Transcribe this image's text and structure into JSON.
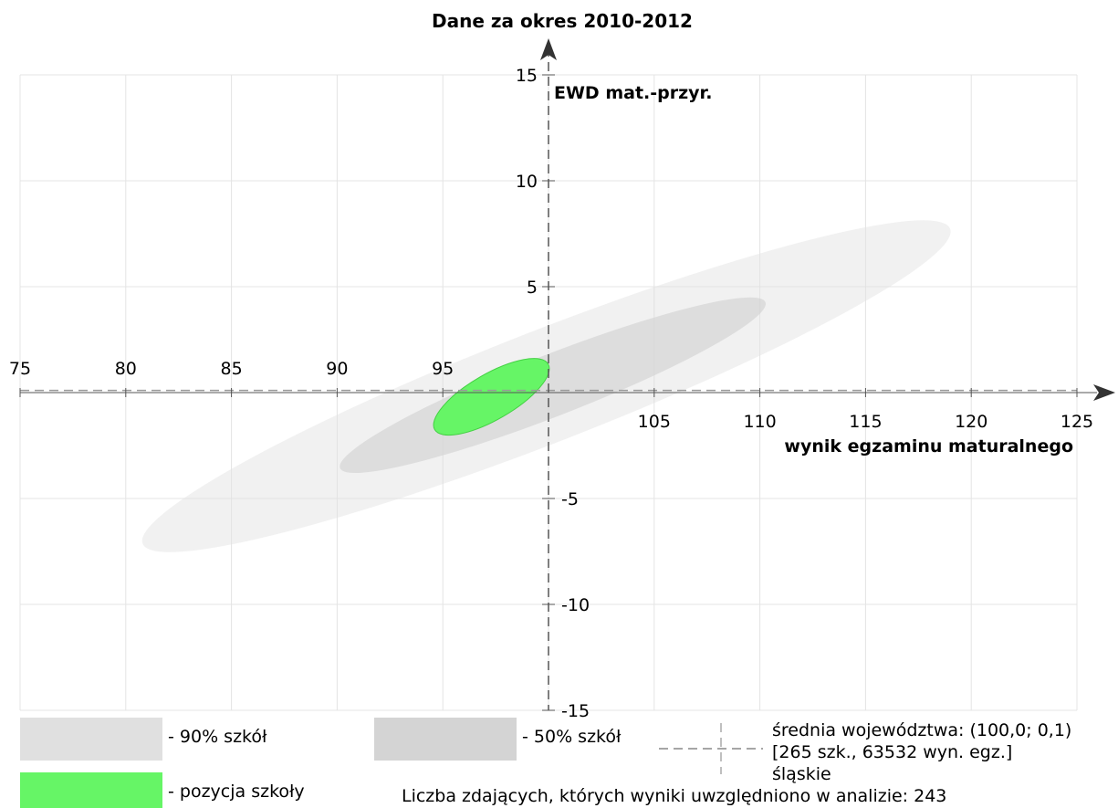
{
  "chart_data": {
    "type": "scatter",
    "title": "Dane za okres 2010-2012",
    "xlabel": "wynik egzaminu maturalnego",
    "ylabel": "EWD mat.-przyr.",
    "xlim": [
      75,
      125
    ],
    "ylim": [
      -15,
      15
    ],
    "x_ticks": [
      "75",
      "80",
      "85",
      "90",
      "95",
      "105",
      "110",
      "115",
      "120",
      "125"
    ],
    "y_ticks": [
      "15",
      "10",
      "5",
      "-5",
      "-10",
      "-15"
    ],
    "grid": true,
    "reference_point": {
      "x": 100.0,
      "y": 0.1
    },
    "regions": [
      {
        "name": "90% szkół",
        "color": "#e0e0e0",
        "center": [
          99.9,
          0.3
        ],
        "rx": 20.5,
        "ry": 2.65,
        "angle_deg": 21.3
      },
      {
        "name": "50% szkół",
        "color": "#d4d4d4",
        "center": [
          100.2,
          0.35
        ],
        "rx": 10.8,
        "ry": 1.45,
        "angle_deg": 21.3
      },
      {
        "name": "pozycja szkoły",
        "color": "#66f566",
        "center": [
          97.3,
          -0.2
        ],
        "rx": 3.1,
        "ry": 1.08,
        "angle_deg": 30
      }
    ]
  },
  "legend": {
    "p90_label": "- 90% szkół",
    "p50_label": "- 50% szkół",
    "school_label": "- pozycja szkoły",
    "avg_line1": "średnia województwa: (100,0; 0,1)",
    "avg_line2": "[265 szk., 63532 wyn. egz.]",
    "avg_line3": "śląskie",
    "count_text": "Liczba zdających, których wyniki uwzględniono w analizie: 243"
  },
  "colors": {
    "p90": "#e0e0e0",
    "p50": "#d4d4d4",
    "school": "#66f566",
    "grid": "#e4e4e4",
    "axis": "#555555"
  }
}
